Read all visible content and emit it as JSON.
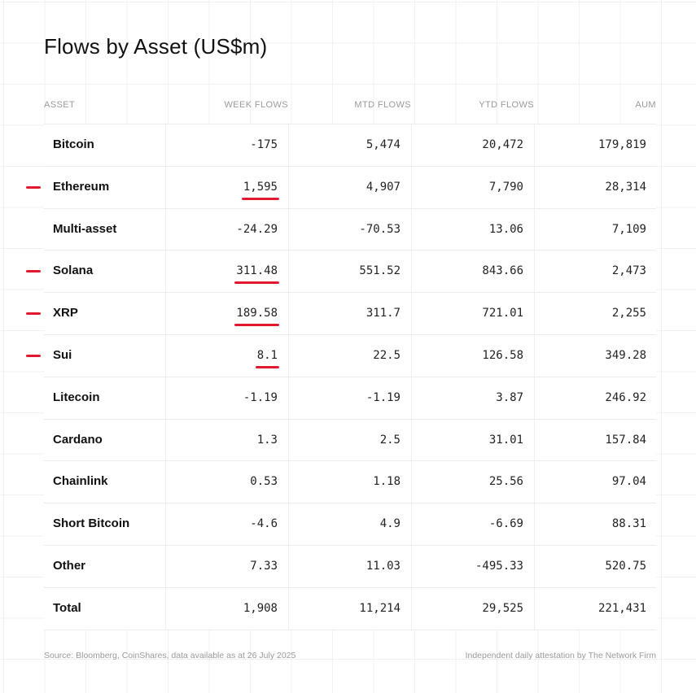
{
  "chart_data": {
    "type": "table",
    "title": "Flows by Asset (US$m)",
    "columns": [
      "ASSET",
      "WEEK FLOWS",
      "MTD FLOWS",
      "YTD FLOWS",
      "AUM"
    ],
    "rows": [
      {
        "asset": "Bitcoin",
        "week": "-175",
        "mtd": "5,474",
        "ytd": "20,472",
        "aum": "179,819",
        "highlight": false
      },
      {
        "asset": "Ethereum",
        "week": "1,595",
        "mtd": "4,907",
        "ytd": "7,790",
        "aum": "28,314",
        "highlight": true
      },
      {
        "asset": "Multi-asset",
        "week": "-24.29",
        "mtd": "-70.53",
        "ytd": "13.06",
        "aum": "7,109",
        "highlight": false
      },
      {
        "asset": "Solana",
        "week": "311.48",
        "mtd": "551.52",
        "ytd": "843.66",
        "aum": "2,473",
        "highlight": true
      },
      {
        "asset": "XRP",
        "week": "189.58",
        "mtd": "311.7",
        "ytd": "721.01",
        "aum": "2,255",
        "highlight": true
      },
      {
        "asset": "Sui",
        "week": "8.1",
        "mtd": "22.5",
        "ytd": "126.58",
        "aum": "349.28",
        "highlight": true
      },
      {
        "asset": "Litecoin",
        "week": "-1.19",
        "mtd": "-1.19",
        "ytd": "3.87",
        "aum": "246.92",
        "highlight": false
      },
      {
        "asset": "Cardano",
        "week": "1.3",
        "mtd": "2.5",
        "ytd": "31.01",
        "aum": "157.84",
        "highlight": false
      },
      {
        "asset": "Chainlink",
        "week": "0.53",
        "mtd": "1.18",
        "ytd": "25.56",
        "aum": "97.04",
        "highlight": false
      },
      {
        "asset": "Short Bitcoin",
        "week": "-4.6",
        "mtd": "4.9",
        "ytd": "-6.69",
        "aum": "88.31",
        "highlight": false
      },
      {
        "asset": "Other",
        "week": "7.33",
        "mtd": "11.03",
        "ytd": "-495.33",
        "aum": "520.75",
        "highlight": false
      },
      {
        "asset": "Total",
        "week": "1,908",
        "mtd": "11,214",
        "ytd": "29,525",
        "aum": "221,431",
        "highlight": false
      }
    ],
    "highlight_color": "#e0192f"
  },
  "footer": {
    "source": "Source: Bloomberg, CoinShares, data available as at 26 July 2025",
    "attestation": "Independent daily attestation by The Network Firm"
  }
}
